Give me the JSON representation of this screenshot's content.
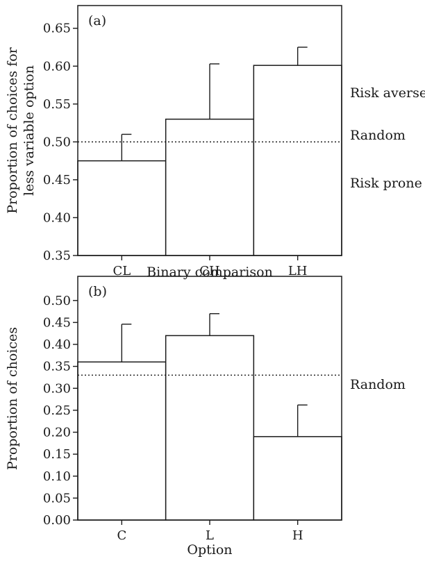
{
  "chart_data": [
    {
      "type": "bar",
      "panel_label": "(a)",
      "categories": [
        "CL",
        "CH",
        "LH"
      ],
      "values": [
        0.475,
        0.53,
        0.601
      ],
      "error_upper": [
        0.51,
        0.603,
        0.625
      ],
      "reference_line": 0.5,
      "ylim": [
        0.35,
        0.68
      ],
      "yticks": [
        "0.35",
        "0.40",
        "0.45",
        "0.50",
        "0.55",
        "0.60",
        "0.65"
      ],
      "xlabel": "Binary comparison",
      "ylabel_lines": [
        "Proportion of choices for",
        "less variable option"
      ],
      "annotations": [
        "Risk averse",
        "Random",
        "Risk prone"
      ],
      "grid": false,
      "colors": {
        "bar_fill": "#ffffff",
        "stroke": "#1a1a1a"
      }
    },
    {
      "type": "bar",
      "panel_label": "(b)",
      "categories": [
        "C",
        "L",
        "H"
      ],
      "values": [
        0.36,
        0.42,
        0.19
      ],
      "error_upper": [
        0.446,
        0.47,
        0.262
      ],
      "reference_line": 0.33,
      "ylim": [
        0.0,
        0.555
      ],
      "yticks": [
        "0.00",
        "0.05",
        "0.10",
        "0.15",
        "0.20",
        "0.25",
        "0.30",
        "0.35",
        "0.40",
        "0.45",
        "0.50"
      ],
      "xlabel": "Option",
      "ylabel": "Proportion of choices",
      "annotations": [
        "Random"
      ],
      "grid": false,
      "colors": {
        "bar_fill": "#ffffff",
        "stroke": "#1a1a1a"
      }
    }
  ]
}
